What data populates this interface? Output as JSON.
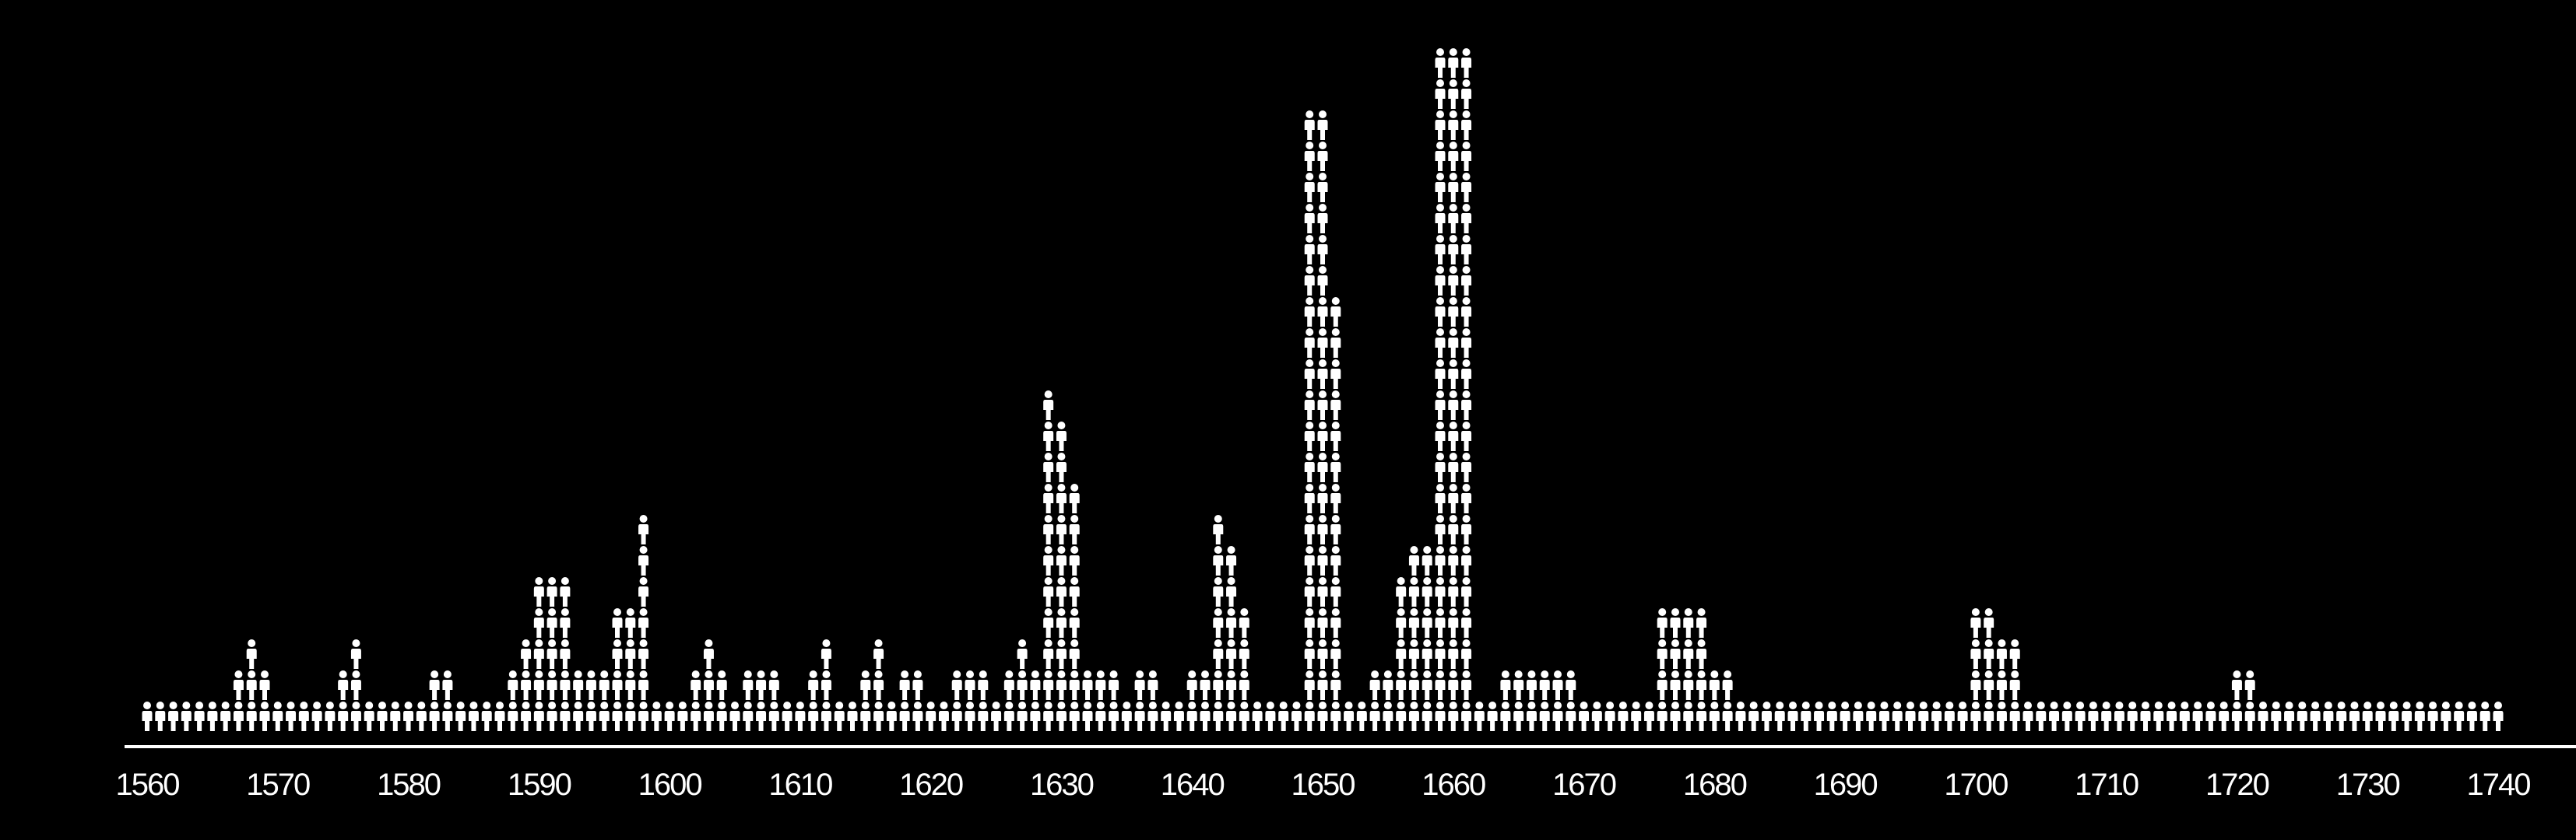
{
  "chart_data": {
    "type": "pictogram-column",
    "x_range": [
      1560,
      1740
    ],
    "x_ticks": [
      1560,
      1570,
      1580,
      1590,
      1600,
      1610,
      1620,
      1630,
      1640,
      1650,
      1660,
      1670,
      1680,
      1690,
      1700,
      1710,
      1720,
      1730,
      1740
    ],
    "title": "",
    "xlabel": "",
    "ylabel": "",
    "grid": false,
    "legend": "none",
    "colors": {
      "background": "#000000",
      "marker": "#ffffff",
      "axis": "#ffffff"
    },
    "icon": "person-icon",
    "unit_per_icon": 1,
    "x": [
      1560,
      1561,
      1562,
      1563,
      1564,
      1565,
      1566,
      1567,
      1568,
      1569,
      1570,
      1571,
      1572,
      1573,
      1574,
      1575,
      1576,
      1577,
      1578,
      1579,
      1580,
      1581,
      1582,
      1583,
      1584,
      1585,
      1586,
      1587,
      1588,
      1589,
      1590,
      1591,
      1592,
      1593,
      1594,
      1595,
      1596,
      1597,
      1598,
      1599,
      1600,
      1601,
      1602,
      1603,
      1604,
      1605,
      1606,
      1607,
      1608,
      1609,
      1610,
      1611,
      1612,
      1613,
      1614,
      1615,
      1616,
      1617,
      1618,
      1619,
      1620,
      1621,
      1622,
      1623,
      1624,
      1625,
      1626,
      1627,
      1628,
      1629,
      1630,
      1631,
      1632,
      1633,
      1634,
      1635,
      1636,
      1637,
      1638,
      1639,
      1640,
      1641,
      1642,
      1643,
      1644,
      1645,
      1646,
      1647,
      1648,
      1649,
      1650,
      1651,
      1652,
      1653,
      1654,
      1655,
      1656,
      1657,
      1658,
      1659,
      1660,
      1661,
      1662,
      1663,
      1664,
      1665,
      1666,
      1667,
      1668,
      1669,
      1670,
      1671,
      1672,
      1673,
      1674,
      1675,
      1676,
      1677,
      1678,
      1679,
      1680,
      1681,
      1682,
      1683,
      1684,
      1685,
      1686,
      1687,
      1688,
      1689,
      1690,
      1691,
      1692,
      1693,
      1694,
      1695,
      1696,
      1697,
      1698,
      1699,
      1700,
      1701,
      1702,
      1703,
      1704,
      1705,
      1706,
      1707,
      1708,
      1709,
      1710,
      1711,
      1712,
      1713,
      1714,
      1715,
      1716,
      1717,
      1718,
      1719,
      1720,
      1721,
      1722,
      1723,
      1724,
      1725,
      1726,
      1727,
      1728,
      1729,
      1730,
      1731,
      1732,
      1733,
      1734,
      1735,
      1736,
      1737,
      1738,
      1739,
      1740
    ],
    "values": [
      1,
      1,
      1,
      1,
      1,
      1,
      1,
      2,
      3,
      2,
      1,
      1,
      1,
      1,
      1,
      2,
      3,
      1,
      1,
      1,
      1,
      1,
      2,
      2,
      1,
      1,
      1,
      1,
      2,
      3,
      5,
      5,
      5,
      2,
      2,
      2,
      4,
      4,
      7,
      1,
      1,
      1,
      2,
      3,
      2,
      1,
      2,
      2,
      2,
      1,
      1,
      2,
      3,
      1,
      1,
      2,
      3,
      1,
      2,
      2,
      1,
      1,
      2,
      2,
      2,
      1,
      2,
      3,
      2,
      11,
      10,
      8,
      2,
      2,
      2,
      1,
      2,
      2,
      1,
      1,
      2,
      2,
      7,
      6,
      4,
      1,
      1,
      1,
      1,
      20,
      20,
      14,
      1,
      1,
      2,
      2,
      5,
      6,
      6,
      22,
      22,
      22,
      1,
      1,
      2,
      2,
      2,
      2,
      2,
      2,
      1,
      1,
      1,
      1,
      1,
      1,
      4,
      4,
      4,
      4,
      2,
      2,
      1,
      1,
      1,
      1,
      1,
      1,
      1,
      1,
      1,
      1,
      1,
      1,
      1,
      1,
      1,
      1,
      1,
      1,
      4,
      4,
      3,
      3,
      1,
      1,
      1,
      1,
      1,
      1,
      1,
      1,
      1,
      1,
      1,
      1,
      1,
      1,
      1,
      1,
      2,
      2,
      1,
      1,
      1,
      1,
      1,
      1,
      1,
      1,
      1,
      1,
      1,
      1,
      1,
      1,
      1,
      1,
      1,
      1,
      1
    ]
  }
}
